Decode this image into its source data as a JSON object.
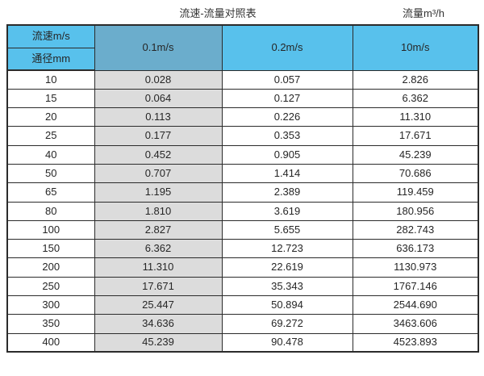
{
  "header": {
    "title": "流速-流量对照表",
    "unit_label": "流量m³/h"
  },
  "table": {
    "corner_top": "流速m/s",
    "corner_bottom": "通径mm",
    "columns": [
      "0.1m/s",
      "0.2m/s",
      "10m/s"
    ],
    "rows": [
      {
        "dn": "10",
        "values": [
          "0.028",
          "0.057",
          "2.826"
        ]
      },
      {
        "dn": "15",
        "values": [
          "0.064",
          "0.127",
          "6.362"
        ]
      },
      {
        "dn": "20",
        "values": [
          "0.113",
          "0.226",
          "11.310"
        ]
      },
      {
        "dn": "25",
        "values": [
          "0.177",
          "0.353",
          "17.671"
        ]
      },
      {
        "dn": "40",
        "values": [
          "0.452",
          "0.905",
          "45.239"
        ]
      },
      {
        "dn": "50",
        "values": [
          "0.707",
          "1.414",
          "70.686"
        ]
      },
      {
        "dn": "65",
        "values": [
          "1.195",
          "2.389",
          "119.459"
        ]
      },
      {
        "dn": "80",
        "values": [
          "1.810",
          "3.619",
          "180.956"
        ]
      },
      {
        "dn": "100",
        "values": [
          "2.827",
          "5.655",
          "282.743"
        ]
      },
      {
        "dn": "150",
        "values": [
          "6.362",
          "12.723",
          "636.173"
        ]
      },
      {
        "dn": "200",
        "values": [
          "11.310",
          "22.619",
          "1130.973"
        ]
      },
      {
        "dn": "250",
        "values": [
          "17.671",
          "35.343",
          "1767.146"
        ]
      },
      {
        "dn": "300",
        "values": [
          "25.447",
          "50.894",
          "2544.690"
        ]
      },
      {
        "dn": "350",
        "values": [
          "34.636",
          "69.272",
          "3463.606"
        ]
      },
      {
        "dn": "400",
        "values": [
          "45.239",
          "90.478",
          "4523.893"
        ]
      }
    ]
  },
  "colors": {
    "header_blue": "#58C1EC",
    "header_blue_dark": "#6BADCC",
    "highlight_gray": "#DCDCDC",
    "border": "#2b2b2b"
  }
}
